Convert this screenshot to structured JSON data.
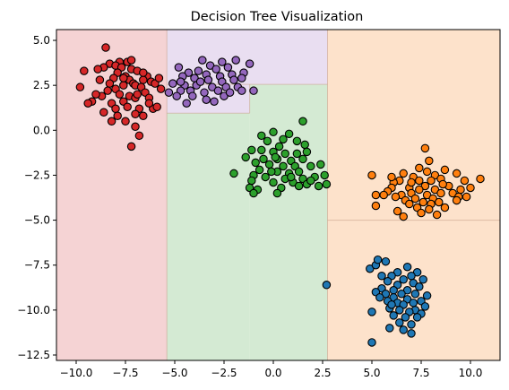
{
  "chart_data": {
    "type": "scatter",
    "title": "Decision Tree Visualization",
    "xlabel": "",
    "ylabel": "",
    "xlim": [
      -11.0,
      11.5
    ],
    "ylim": [
      -12.8,
      5.6
    ],
    "x_ticks": [
      -10.0,
      -7.5,
      -5.0,
      -2.5,
      0.0,
      2.5,
      5.0,
      7.5,
      10.0
    ],
    "x_tick_labels": [
      "−10.0",
      "−7.5",
      "−5.0",
      "−2.5",
      "0.0",
      "2.5",
      "5.0",
      "7.5",
      "10.0"
    ],
    "y_ticks": [
      5.0,
      2.5,
      0.0,
      -2.5,
      -5.0,
      -7.5,
      -10.0,
      -12.5
    ],
    "y_tick_labels": [
      "5.0",
      "2.5",
      "0.0",
      "−2.5",
      "−5.0",
      "−7.5",
      "−10.0",
      "−12.5"
    ],
    "grid": false,
    "legend": "none",
    "regions": [
      {
        "class": "red",
        "x0": -11.0,
        "x1": -5.4,
        "y0": -12.8,
        "y1": 5.6,
        "color": "#f5d3d4"
      },
      {
        "class": "purple",
        "x0": -5.4,
        "x1": 2.75,
        "y0": 2.55,
        "y1": 5.6,
        "color": "#e9def1"
      },
      {
        "class": "purple",
        "x0": -5.4,
        "x1": -1.2,
        "y0": 0.95,
        "y1": 2.55,
        "color": "#e9def1"
      },
      {
        "class": "green",
        "x0": -5.4,
        "x1": -1.2,
        "y0": -12.8,
        "y1": 0.95,
        "color": "#d4ead3"
      },
      {
        "class": "green",
        "x0": -1.2,
        "x1": 2.75,
        "y0": -12.8,
        "y1": 2.55,
        "color": "#d4ead3"
      },
      {
        "class": "orange",
        "x0": 2.75,
        "x1": 11.5,
        "y0": -12.8,
        "y1": 5.6,
        "color": "#fde2cb"
      }
    ],
    "boundaries": [
      {
        "x0": -5.4,
        "x1": -5.4,
        "y0": -12.8,
        "y1": 5.6
      },
      {
        "x0": 2.75,
        "x1": 2.75,
        "y0": -12.8,
        "y1": 5.6
      },
      {
        "x0": -5.4,
        "x1": 2.75,
        "y0": 2.55,
        "y1": 2.55
      },
      {
        "x0": -5.4,
        "x1": -1.2,
        "y0": 0.95,
        "y1": 0.95
      },
      {
        "x0": -1.2,
        "x1": -1.2,
        "y0": 0.95,
        "y1": 2.55
      },
      {
        "x0": 2.75,
        "x1": 11.5,
        "y0": -5.0,
        "y1": -5.0
      }
    ],
    "series": [
      {
        "color": "#d62728",
        "points": [
          [
            -8.5,
            4.6
          ],
          [
            -7.8,
            3.8
          ],
          [
            -8.3,
            3.7
          ],
          [
            -7.4,
            3.8
          ],
          [
            -8.0,
            3.6
          ],
          [
            -7.7,
            3.5
          ],
          [
            -8.6,
            3.5
          ],
          [
            -7.2,
            3.4
          ],
          [
            -6.9,
            3.3
          ],
          [
            -6.4,
            3.0
          ],
          [
            -7.9,
            3.2
          ],
          [
            -8.1,
            2.9
          ],
          [
            -7.5,
            3.0
          ],
          [
            -7.3,
            2.8
          ],
          [
            -6.6,
            2.8
          ],
          [
            -6.2,
            2.7
          ],
          [
            -6.0,
            2.6
          ],
          [
            -7.1,
            2.6
          ],
          [
            -8.3,
            2.6
          ],
          [
            -8.8,
            2.8
          ],
          [
            -7.6,
            2.5
          ],
          [
            -7.0,
            2.5
          ],
          [
            -6.7,
            2.4
          ],
          [
            -8.0,
            2.3
          ],
          [
            -8.4,
            2.2
          ],
          [
            -7.8,
            2.0
          ],
          [
            -6.5,
            2.1
          ],
          [
            -7.3,
            1.9
          ],
          [
            -8.7,
            1.9
          ],
          [
            -9.0,
            2.0
          ],
          [
            -7.0,
            1.8
          ],
          [
            -6.3,
            1.8
          ],
          [
            -7.6,
            1.6
          ],
          [
            -8.2,
            1.5
          ],
          [
            -7.4,
            1.3
          ],
          [
            -8.0,
            1.2
          ],
          [
            -6.8,
            1.2
          ],
          [
            -6.1,
            1.2
          ],
          [
            -8.6,
            1.0
          ],
          [
            -7.0,
            0.9
          ],
          [
            -7.5,
            0.5
          ],
          [
            -7.0,
            0.2
          ],
          [
            -6.8,
            -0.3
          ],
          [
            -7.2,
            -0.9
          ],
          [
            -8.2,
            0.5
          ],
          [
            -9.8,
            2.4
          ],
          [
            -9.6,
            3.3
          ],
          [
            -9.2,
            1.6
          ],
          [
            -9.4,
            1.5
          ],
          [
            -5.8,
            2.9
          ],
          [
            -5.7,
            2.3
          ],
          [
            -5.9,
            1.3
          ],
          [
            -6.3,
            1.5
          ],
          [
            -6.6,
            0.8
          ],
          [
            -7.9,
            0.8
          ],
          [
            -7.2,
            3.9
          ],
          [
            -6.6,
            3.2
          ],
          [
            -8.9,
            3.4
          ],
          [
            -6.9,
            2.0
          ],
          [
            -7.6,
            2.9
          ]
        ]
      },
      {
        "color": "#9467bd",
        "points": [
          [
            -3.6,
            3.9
          ],
          [
            -2.6,
            3.8
          ],
          [
            -1.9,
            3.9
          ],
          [
            -4.8,
            3.5
          ],
          [
            -3.2,
            3.6
          ],
          [
            -2.9,
            3.4
          ],
          [
            -2.3,
            3.5
          ],
          [
            -4.3,
            3.2
          ],
          [
            -3.8,
            3.3
          ],
          [
            -3.4,
            3.1
          ],
          [
            -2.7,
            3.0
          ],
          [
            -2.1,
            3.1
          ],
          [
            -1.5,
            3.2
          ],
          [
            -1.2,
            3.7
          ],
          [
            -4.6,
            3.0
          ],
          [
            -4.0,
            2.9
          ],
          [
            -3.3,
            2.8
          ],
          [
            -2.6,
            2.7
          ],
          [
            -2.0,
            2.8
          ],
          [
            -1.6,
            2.9
          ],
          [
            -5.1,
            2.6
          ],
          [
            -4.5,
            2.5
          ],
          [
            -3.9,
            2.5
          ],
          [
            -3.1,
            2.4
          ],
          [
            -2.4,
            2.4
          ],
          [
            -1.8,
            2.4
          ],
          [
            -4.7,
            2.2
          ],
          [
            -4.2,
            2.2
          ],
          [
            -3.5,
            2.1
          ],
          [
            -2.8,
            2.2
          ],
          [
            -1.6,
            2.2
          ],
          [
            -5.3,
            2.1
          ],
          [
            -4.9,
            1.9
          ],
          [
            -4.1,
            1.9
          ],
          [
            -3.4,
            1.7
          ],
          [
            -2.5,
            1.9
          ],
          [
            -1.0,
            2.2
          ],
          [
            -4.4,
            1.5
          ],
          [
            -3.0,
            1.6
          ],
          [
            -4.7,
            2.7
          ],
          [
            -3.7,
            2.7
          ],
          [
            -2.2,
            2.1
          ]
        ]
      },
      {
        "color": "#2ca02c",
        "points": [
          [
            1.5,
            0.5
          ],
          [
            0.8,
            -0.2
          ],
          [
            0.0,
            -0.1
          ],
          [
            -0.6,
            -0.3
          ],
          [
            0.5,
            -0.5
          ],
          [
            1.2,
            -0.6
          ],
          [
            -0.3,
            -0.6
          ],
          [
            0.3,
            -0.9
          ],
          [
            1.6,
            -0.8
          ],
          [
            -1.1,
            -1.1
          ],
          [
            -0.6,
            -1.1
          ],
          [
            0.0,
            -1.2
          ],
          [
            0.6,
            -1.3
          ],
          [
            1.2,
            -1.3
          ],
          [
            1.7,
            -1.2
          ],
          [
            -1.4,
            -1.5
          ],
          [
            -0.5,
            -1.6
          ],
          [
            0.2,
            -1.6
          ],
          [
            0.9,
            -1.7
          ],
          [
            1.5,
            -1.6
          ],
          [
            -0.9,
            -1.8
          ],
          [
            -0.2,
            -1.9
          ],
          [
            0.5,
            -2.0
          ],
          [
            1.1,
            -2.0
          ],
          [
            1.9,
            -2.0
          ],
          [
            2.4,
            -1.9
          ],
          [
            -0.7,
            -2.2
          ],
          [
            0.2,
            -2.3
          ],
          [
            0.8,
            -2.4
          ],
          [
            1.3,
            -2.3
          ],
          [
            2.6,
            -2.5
          ],
          [
            -2.0,
            -2.4
          ],
          [
            -1.0,
            -2.5
          ],
          [
            -0.4,
            -2.6
          ],
          [
            0.6,
            -2.7
          ],
          [
            1.5,
            -2.7
          ],
          [
            2.1,
            -2.6
          ],
          [
            -1.1,
            -2.8
          ],
          [
            0.0,
            -2.9
          ],
          [
            1.0,
            -2.9
          ],
          [
            1.7,
            -3.0
          ],
          [
            2.7,
            -3.0
          ],
          [
            -1.2,
            -3.2
          ],
          [
            0.4,
            -3.2
          ],
          [
            2.3,
            -3.1
          ],
          [
            -0.8,
            -3.3
          ],
          [
            1.3,
            -3.1
          ],
          [
            0.2,
            -3.5
          ],
          [
            -1.0,
            -3.5
          ],
          [
            0.1,
            -1.5
          ],
          [
            -0.1,
            -2.3
          ],
          [
            0.9,
            -2.6
          ],
          [
            1.9,
            -2.8
          ]
        ]
      },
      {
        "color": "#ff7f0e",
        "points": [
          [
            7.7,
            -1.0
          ],
          [
            7.9,
            -1.7
          ],
          [
            7.4,
            -2.1
          ],
          [
            8.7,
            -2.2
          ],
          [
            7.8,
            -2.3
          ],
          [
            6.6,
            -2.4
          ],
          [
            8.2,
            -2.5
          ],
          [
            9.3,
            -2.4
          ],
          [
            7.1,
            -2.6
          ],
          [
            8.5,
            -2.7
          ],
          [
            6.4,
            -2.8
          ],
          [
            7.4,
            -2.8
          ],
          [
            9.7,
            -2.8
          ],
          [
            10.5,
            -2.7
          ],
          [
            8.0,
            -2.8
          ],
          [
            6.1,
            -2.9
          ],
          [
            7.7,
            -3.1
          ],
          [
            6.9,
            -3.2
          ],
          [
            8.9,
            -3.1
          ],
          [
            8.2,
            -3.3
          ],
          [
            7.4,
            -3.3
          ],
          [
            6.0,
            -3.2
          ],
          [
            10.0,
            -3.2
          ],
          [
            5.8,
            -3.4
          ],
          [
            9.5,
            -3.3
          ],
          [
            7.0,
            -3.5
          ],
          [
            8.5,
            -3.5
          ],
          [
            6.5,
            -3.6
          ],
          [
            7.8,
            -3.6
          ],
          [
            9.1,
            -3.5
          ],
          [
            6.2,
            -3.7
          ],
          [
            7.2,
            -3.8
          ],
          [
            8.1,
            -3.8
          ],
          [
            9.4,
            -3.7
          ],
          [
            5.2,
            -3.6
          ],
          [
            5.6,
            -3.6
          ],
          [
            6.7,
            -3.9
          ],
          [
            7.6,
            -4.0
          ],
          [
            8.4,
            -4.0
          ],
          [
            9.3,
            -3.9
          ],
          [
            6.9,
            -4.1
          ],
          [
            8.0,
            -4.1
          ],
          [
            5.2,
            -4.2
          ],
          [
            7.3,
            -4.3
          ],
          [
            8.7,
            -4.3
          ],
          [
            7.9,
            -4.4
          ],
          [
            6.3,
            -4.5
          ],
          [
            7.5,
            -4.6
          ],
          [
            6.6,
            -4.8
          ],
          [
            8.3,
            -4.7
          ],
          [
            5.0,
            -2.5
          ],
          [
            6.0,
            -2.6
          ],
          [
            7.0,
            -2.9
          ],
          [
            8.6,
            -3.0
          ],
          [
            9.8,
            -3.7
          ]
        ]
      },
      {
        "color": "#1f77b4",
        "points": [
          [
            6.8,
            -7.6
          ],
          [
            5.7,
            -7.3
          ],
          [
            4.9,
            -7.7
          ],
          [
            5.2,
            -7.5
          ],
          [
            6.3,
            -7.9
          ],
          [
            7.3,
            -7.9
          ],
          [
            5.5,
            -8.1
          ],
          [
            6.0,
            -8.1
          ],
          [
            7.0,
            -8.1
          ],
          [
            6.6,
            -8.3
          ],
          [
            7.6,
            -8.3
          ],
          [
            5.8,
            -8.4
          ],
          [
            6.3,
            -8.6
          ],
          [
            7.1,
            -8.5
          ],
          [
            7.4,
            -8.7
          ],
          [
            5.5,
            -8.8
          ],
          [
            6.1,
            -8.9
          ],
          [
            6.8,
            -8.9
          ],
          [
            5.2,
            -9.0
          ],
          [
            5.7,
            -9.1
          ],
          [
            6.5,
            -9.1
          ],
          [
            7.2,
            -9.1
          ],
          [
            7.8,
            -9.2
          ],
          [
            5.4,
            -9.3
          ],
          [
            6.1,
            -9.3
          ],
          [
            6.8,
            -9.4
          ],
          [
            7.5,
            -9.5
          ],
          [
            5.8,
            -9.5
          ],
          [
            6.3,
            -9.6
          ],
          [
            7.1,
            -9.6
          ],
          [
            6.6,
            -9.7
          ],
          [
            7.7,
            -9.8
          ],
          [
            5.9,
            -9.9
          ],
          [
            6.4,
            -10.0
          ],
          [
            7.2,
            -10.0
          ],
          [
            6.9,
            -10.1
          ],
          [
            7.5,
            -10.2
          ],
          [
            5.0,
            -10.1
          ],
          [
            6.1,
            -10.3
          ],
          [
            6.7,
            -10.4
          ],
          [
            7.3,
            -10.4
          ],
          [
            6.4,
            -10.7
          ],
          [
            7.0,
            -10.8
          ],
          [
            5.9,
            -11.0
          ],
          [
            6.6,
            -11.1
          ],
          [
            7.0,
            -11.3
          ],
          [
            5.0,
            -11.8
          ],
          [
            2.7,
            -8.6
          ],
          [
            5.3,
            -7.2
          ],
          [
            6.0,
            -9.7
          ]
        ]
      }
    ]
  }
}
